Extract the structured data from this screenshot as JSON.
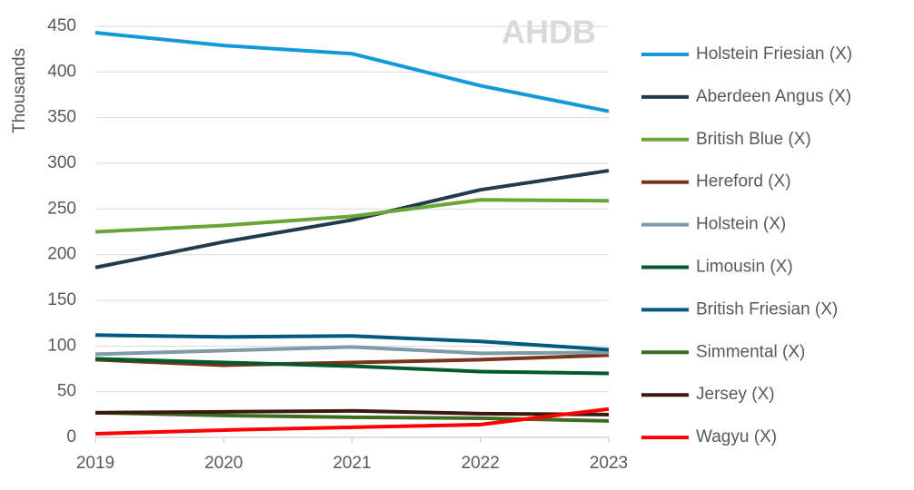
{
  "chart_data": {
    "type": "line",
    "y_label": "Thousands",
    "watermark": "AHDB",
    "x": [
      2019,
      2020,
      2021,
      2022,
      2023
    ],
    "xlim": [
      2019,
      2023
    ],
    "xticks": [
      2019,
      2020,
      2021,
      2022,
      2023
    ],
    "ylim": [
      0,
      450
    ],
    "yticks": [
      0,
      50,
      100,
      150,
      200,
      250,
      300,
      350,
      400,
      450
    ],
    "grid": true,
    "legend": "right",
    "series": [
      {
        "name": "Holstein Friesian (X)",
        "color": "#1499d6",
        "values": [
          443,
          429,
          420,
          385,
          357
        ]
      },
      {
        "name": "Aberdeen Angus (X)",
        "color": "#1f3b4d",
        "values": [
          186,
          214,
          238,
          271,
          292
        ]
      },
      {
        "name": "British Blue (X)",
        "color": "#6aa535",
        "values": [
          225,
          232,
          242,
          260,
          259
        ]
      },
      {
        "name": "Hereford (X)",
        "color": "#7a3418",
        "values": [
          85,
          79,
          82,
          85,
          90
        ]
      },
      {
        "name": "Holstein (X)",
        "color": "#7f9ba8",
        "values": [
          91,
          95,
          99,
          92,
          93
        ]
      },
      {
        "name": "Limousin (X)",
        "color": "#005a2b",
        "values": [
          86,
          82,
          78,
          72,
          70
        ]
      },
      {
        "name": "British Friesian (X)",
        "color": "#005a80",
        "values": [
          112,
          110,
          111,
          105,
          96
        ]
      },
      {
        "name": "Simmental (X)",
        "color": "#3f6b20",
        "values": [
          27,
          24,
          22,
          21,
          18
        ]
      },
      {
        "name": "Jersey (X)",
        "color": "#3b1a0e",
        "values": [
          27,
          28,
          29,
          26,
          25
        ]
      },
      {
        "name": "Wagyu (X)",
        "color": "#ff0000",
        "values": [
          4,
          8,
          11,
          14,
          31
        ]
      }
    ]
  }
}
